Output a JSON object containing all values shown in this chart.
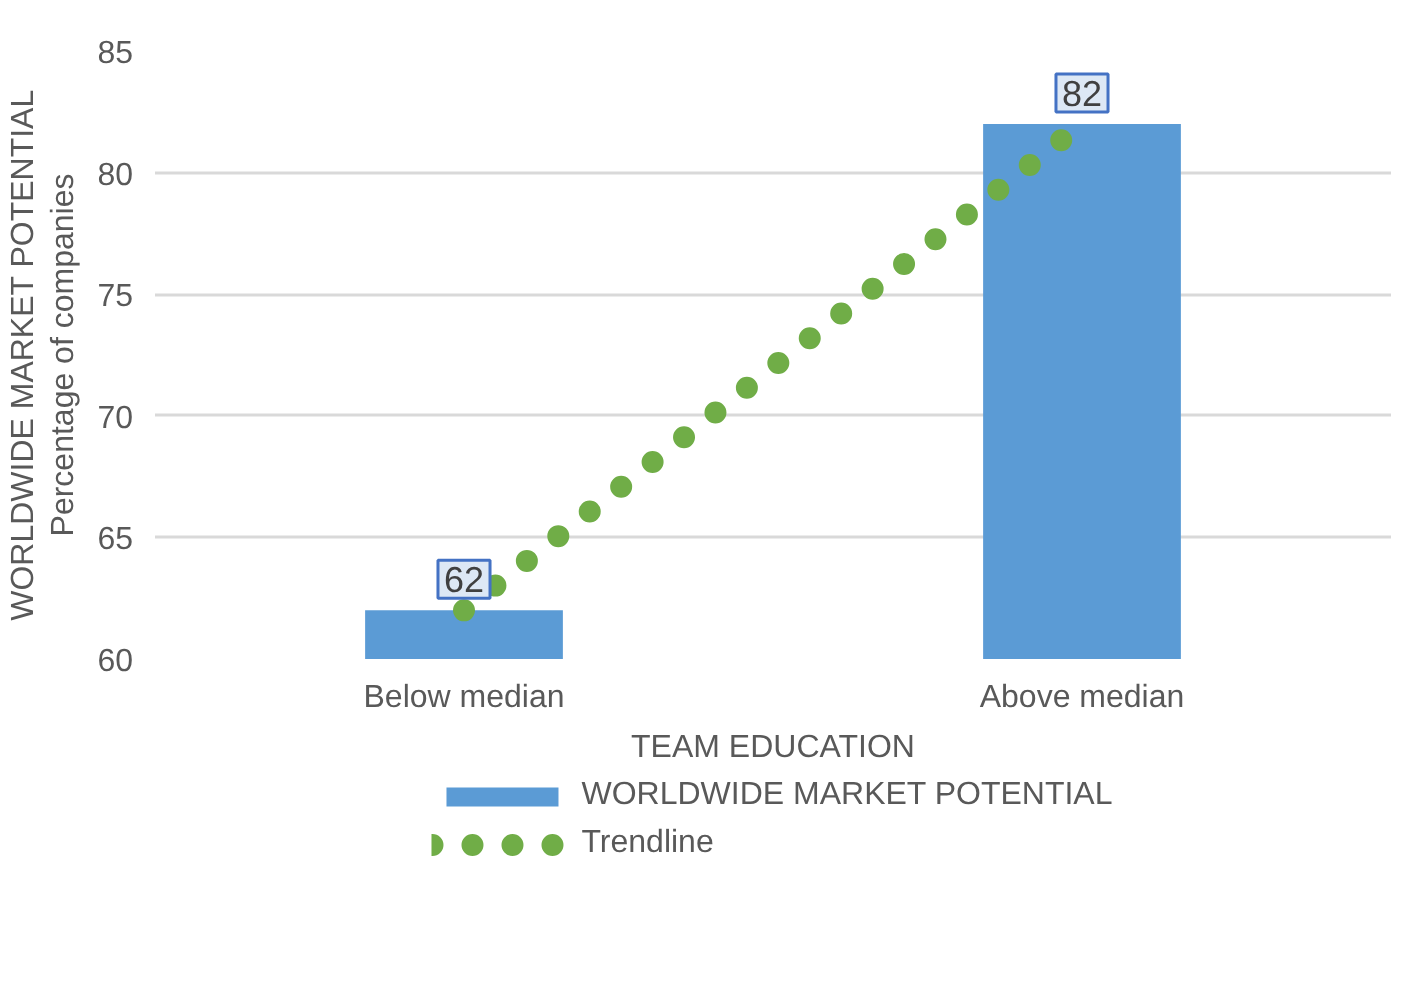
{
  "chart_data": {
    "type": "bar",
    "xlabel": "TEAM EDUCATION",
    "ylabel": "WORLDWIDE MARKET POTENTIAL\nPercentage of companies",
    "categories": [
      "Below median",
      "Above median"
    ],
    "ylim": [
      60,
      85
    ],
    "yticks": [
      60,
      65,
      70,
      75,
      80,
      85
    ],
    "grid": "y",
    "legend": "bottom",
    "series": [
      {
        "name": "WORLDWIDE MARKET POTENTIAL",
        "color": "#5b9bd5",
        "values": [
          62,
          82
        ],
        "value_labels": [
          "62",
          "82"
        ]
      },
      {
        "name": "Trendline",
        "type": "line",
        "x": [
          "Below median",
          "Above median"
        ],
        "color": "#70ad47",
        "line_style": "dotted",
        "values": [
          62,
          82
        ]
      }
    ]
  }
}
